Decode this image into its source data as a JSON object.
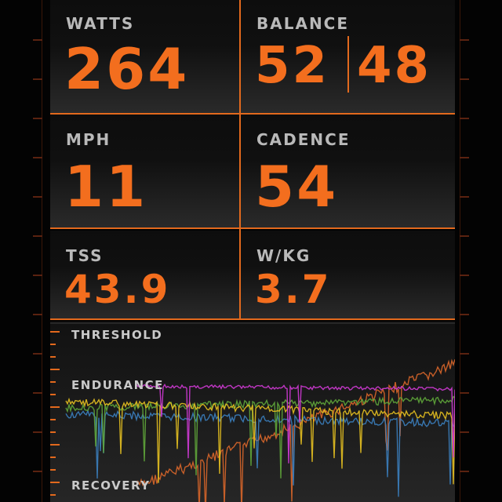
{
  "metrics": {
    "watts": {
      "label": "WATTS",
      "value": "264"
    },
    "balance": {
      "label": "BALANCE",
      "left": "52",
      "right": "48"
    },
    "mph": {
      "label": "MPH",
      "value": "11"
    },
    "cadence": {
      "label": "CADENCE",
      "value": "54"
    },
    "tss": {
      "label": "TSS",
      "value": "43.9"
    },
    "wkg": {
      "label": "W/KG",
      "value": "3.7"
    }
  },
  "zones": {
    "threshold": "THRESHOLD",
    "endurance": "ENDURANCE",
    "recovery": "RECOVERY"
  },
  "colors": {
    "accent": "#f36e1e",
    "label": "#b9b9b9",
    "series": [
      "#d23ad6",
      "#e6c020",
      "#5fa63a",
      "#3b7fbf",
      "#d9662a"
    ]
  }
}
